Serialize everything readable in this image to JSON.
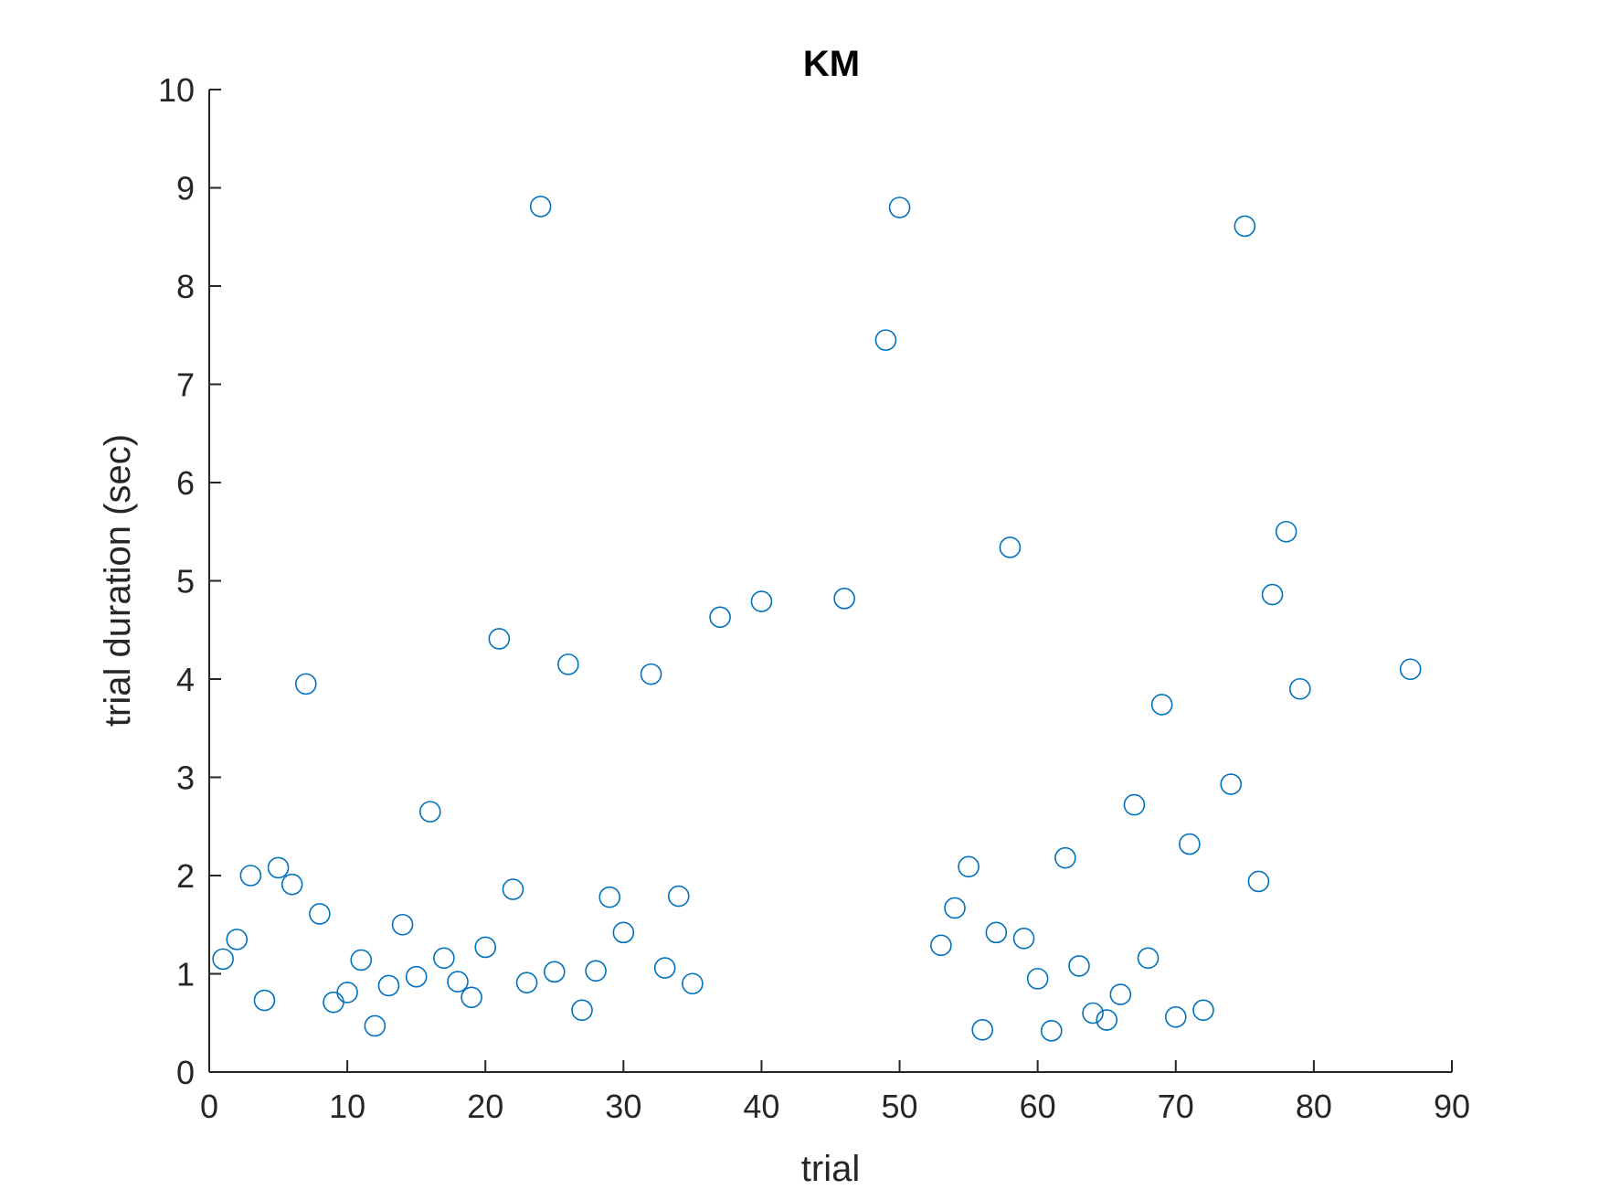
{
  "chart_data": {
    "type": "scatter",
    "title": "KM",
    "xlabel": "trial",
    "ylabel": "trial duration (sec)",
    "xlim": [
      0,
      90
    ],
    "ylim": [
      0,
      10
    ],
    "xticks": [
      0,
      10,
      20,
      30,
      40,
      50,
      60,
      70,
      80,
      90
    ],
    "yticks": [
      0,
      1,
      2,
      3,
      4,
      5,
      6,
      7,
      8,
      9,
      10
    ],
    "grid": false,
    "marker": "circle-open",
    "color": "#0072BD",
    "points": [
      [
        1,
        1.15
      ],
      [
        2,
        1.35
      ],
      [
        3,
        2.0
      ],
      [
        4,
        0.73
      ],
      [
        5,
        2.08
      ],
      [
        6,
        1.91
      ],
      [
        7,
        3.95
      ],
      [
        8,
        1.61
      ],
      [
        9,
        0.71
      ],
      [
        10,
        0.81
      ],
      [
        11,
        1.14
      ],
      [
        12,
        0.47
      ],
      [
        13,
        0.88
      ],
      [
        14,
        1.5
      ],
      [
        15,
        0.97
      ],
      [
        16,
        2.65
      ],
      [
        17,
        1.16
      ],
      [
        18,
        0.92
      ],
      [
        19,
        0.76
      ],
      [
        20,
        1.27
      ],
      [
        21,
        4.41
      ],
      [
        22,
        1.86
      ],
      [
        23,
        0.91
      ],
      [
        24,
        8.81
      ],
      [
        25,
        1.02
      ],
      [
        26,
        4.15
      ],
      [
        27,
        0.63
      ],
      [
        28,
        1.03
      ],
      [
        29,
        1.78
      ],
      [
        30,
        1.42
      ],
      [
        32,
        4.05
      ],
      [
        33,
        1.06
      ],
      [
        34,
        1.79
      ],
      [
        35,
        0.9
      ],
      [
        37,
        4.63
      ],
      [
        40,
        4.79
      ],
      [
        46,
        4.82
      ],
      [
        49,
        7.45
      ],
      [
        50,
        8.8
      ],
      [
        53,
        1.29
      ],
      [
        54,
        1.67
      ],
      [
        55,
        2.09
      ],
      [
        56,
        0.43
      ],
      [
        57,
        1.42
      ],
      [
        58,
        5.34
      ],
      [
        59,
        1.36
      ],
      [
        60,
        0.95
      ],
      [
        61,
        0.42
      ],
      [
        62,
        2.18
      ],
      [
        63,
        1.08
      ],
      [
        64,
        0.6
      ],
      [
        65,
        0.53
      ],
      [
        66,
        0.79
      ],
      [
        67,
        2.72
      ],
      [
        68,
        1.16
      ],
      [
        69,
        3.74
      ],
      [
        70,
        0.56
      ],
      [
        71,
        2.32
      ],
      [
        72,
        0.63
      ],
      [
        74,
        2.93
      ],
      [
        75,
        8.61
      ],
      [
        76,
        1.94
      ],
      [
        77,
        4.86
      ],
      [
        78,
        5.5
      ],
      [
        79,
        3.9
      ],
      [
        87,
        4.1
      ]
    ]
  }
}
